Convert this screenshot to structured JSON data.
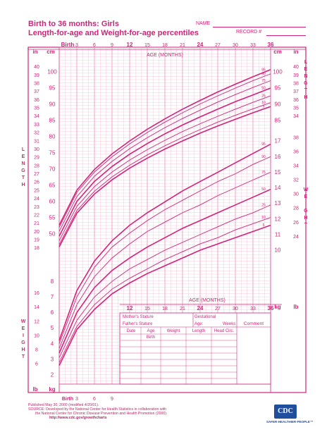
{
  "header": {
    "title_line1": "Birth to 36 months: Girls",
    "title_line2": "Length-for-age and Weight-for-age percentiles",
    "name_label": "NAME",
    "record_label": "RECORD #"
  },
  "side_labels": {
    "length": "LENGTH",
    "weight": "WEIGHT"
  },
  "info_box": {
    "mother_stature": "Mother's Stature",
    "father_stature": "Father's Stature",
    "gestational": "Gestational",
    "age_label": "Age:",
    "weeks": "Weeks",
    "comment": "Comment",
    "columns": [
      "Date",
      "Age",
      "Weight",
      "Length",
      "Head Circ."
    ],
    "birth_row": "Birth"
  },
  "footer": {
    "line1": "Published May 30, 2000 (modified 4/20/01).",
    "line2": "SOURCE: Developed by the National Center for Health Statistics in collaboration with",
    "line3": "the National Center for Chronic Disease Prevention and Health Promotion (2000).",
    "line4": "http://www.cdc.gov/growthcharts",
    "logo_text": "CDC",
    "tagline": "SAFER·HEALTHIER·PEOPLE™"
  },
  "chart_data": [
    {
      "type": "line",
      "name_key": "length-for-age",
      "x_label": "AGE (MONTHS)",
      "x_ticks_top": [
        "Birth",
        "3",
        "6",
        "9",
        "12",
        "15",
        "18",
        "21",
        "24",
        "27",
        "30",
        "33",
        "36"
      ],
      "xlim": [
        0,
        36
      ],
      "y_unit_left": "cm",
      "y_unit_in": "in",
      "ylim_cm": [
        45,
        100
      ],
      "x": [
        0,
        3,
        6,
        9,
        12,
        15,
        18,
        21,
        24,
        27,
        30,
        33,
        36
      ],
      "series": [
        {
          "name": "95",
          "values": [
            52.7,
            63.5,
            69.9,
            74.7,
            78.7,
            82.3,
            85.5,
            88.5,
            91.2,
            93.8,
            96.2,
            98.5,
            100.7
          ]
        },
        {
          "name": "90",
          "values": [
            52.0,
            62.8,
            69.1,
            73.8,
            77.8,
            81.3,
            84.5,
            87.4,
            90.1,
            92.6,
            95.0,
            97.3,
            99.4
          ]
        },
        {
          "name": "75",
          "values": [
            50.8,
            61.5,
            67.8,
            72.4,
            76.3,
            79.7,
            82.8,
            85.6,
            88.2,
            90.7,
            93.0,
            95.2,
            97.3
          ]
        },
        {
          "name": "50",
          "values": [
            49.3,
            60.0,
            66.2,
            70.8,
            74.6,
            77.9,
            80.9,
            83.6,
            86.1,
            88.5,
            90.8,
            92.9,
            95.0
          ]
        },
        {
          "name": "25",
          "values": [
            47.9,
            58.5,
            64.6,
            69.1,
            72.8,
            76.0,
            78.9,
            81.6,
            84.0,
            86.3,
            88.5,
            90.6,
            92.6
          ]
        },
        {
          "name": "10",
          "values": [
            46.7,
            57.2,
            63.2,
            67.6,
            71.2,
            74.4,
            77.2,
            79.8,
            82.2,
            84.5,
            86.6,
            88.6,
            90.5
          ]
        },
        {
          "name": "5",
          "values": [
            46.0,
            56.4,
            62.3,
            66.7,
            70.3,
            73.4,
            76.2,
            78.7,
            81.1,
            83.3,
            85.4,
            87.4,
            89.3
          ]
        }
      ]
    },
    {
      "type": "line",
      "name_key": "weight-for-age",
      "x_label": "AGE (MONTHS)",
      "x_ticks_bottom": [
        "Birth",
        "3",
        "6",
        "9",
        "12",
        "15",
        "18",
        "21",
        "24",
        "27",
        "30",
        "33",
        "36"
      ],
      "xlim": [
        0,
        36
      ],
      "y_unit_left": "kg",
      "y_unit_lb": "lb",
      "ylim_kg": [
        2,
        18
      ],
      "x": [
        0,
        3,
        6,
        9,
        12,
        15,
        18,
        21,
        24,
        27,
        30,
        33,
        36
      ],
      "series": [
        {
          "name": "95",
          "values": [
            4.2,
            7.4,
            9.3,
            10.6,
            11.6,
            12.4,
            13.1,
            13.8,
            14.4,
            15.0,
            15.6,
            16.2,
            16.8
          ]
        },
        {
          "name": "90",
          "values": [
            4.0,
            7.0,
            8.9,
            10.2,
            11.1,
            11.9,
            12.6,
            13.2,
            13.8,
            14.4,
            14.9,
            15.5,
            16.0
          ]
        },
        {
          "name": "75",
          "values": [
            3.7,
            6.5,
            8.3,
            9.5,
            10.4,
            11.2,
            11.8,
            12.4,
            12.9,
            13.5,
            14.0,
            14.5,
            15.0
          ]
        },
        {
          "name": "50",
          "values": [
            3.4,
            6.0,
            7.6,
            8.7,
            9.5,
            10.2,
            10.8,
            11.4,
            11.9,
            12.4,
            12.9,
            13.4,
            13.9
          ]
        },
        {
          "name": "25",
          "values": [
            3.1,
            5.5,
            7.0,
            8.0,
            8.8,
            9.4,
            10.0,
            10.5,
            11.0,
            11.5,
            12.0,
            12.4,
            12.9
          ]
        },
        {
          "name": "10",
          "values": [
            2.8,
            5.1,
            6.5,
            7.5,
            8.2,
            8.8,
            9.4,
            9.9,
            10.4,
            10.8,
            11.3,
            11.7,
            12.1
          ]
        },
        {
          "name": "5",
          "values": [
            2.6,
            4.9,
            6.2,
            7.2,
            7.9,
            8.5,
            9.0,
            9.5,
            10.0,
            10.4,
            10.8,
            11.2,
            11.6
          ]
        }
      ]
    }
  ]
}
